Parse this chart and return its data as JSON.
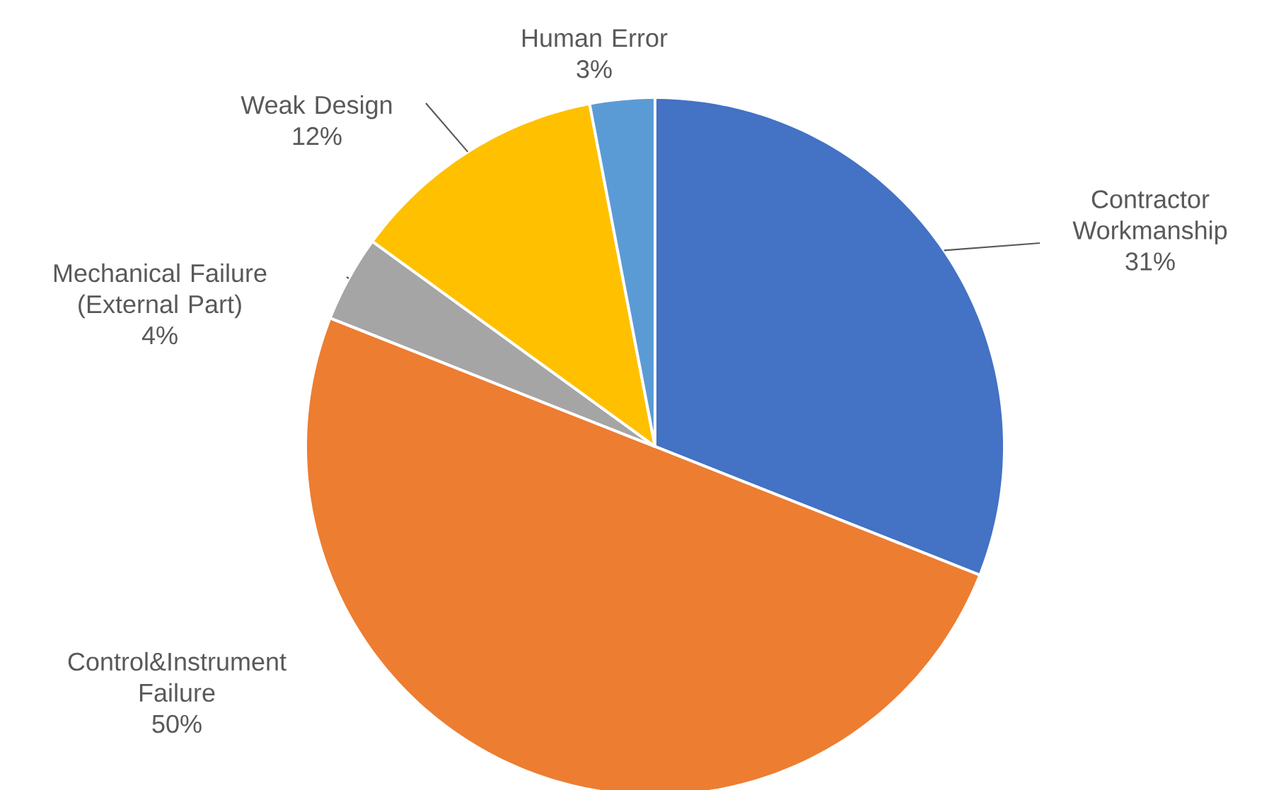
{
  "chart_data": {
    "type": "pie",
    "categories": [
      "Contractor Workmanship",
      "Control&Instrument Failure",
      "Mechanical Failure (External Part)",
      "Weak Design",
      "Human Error"
    ],
    "values": [
      31,
      50,
      4,
      12,
      3
    ],
    "colors": [
      "#4472c4",
      "#ed7d31",
      "#a5a5a5",
      "#ffc000",
      "#5b9bd5"
    ],
    "value_labels": [
      "31%",
      "50%",
      "4%",
      "12%",
      "3%"
    ]
  }
}
